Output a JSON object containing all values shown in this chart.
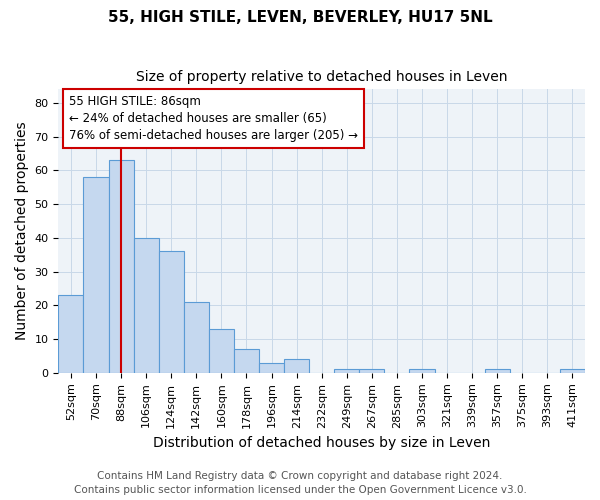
{
  "title": "55, HIGH STILE, LEVEN, BEVERLEY, HU17 5NL",
  "subtitle": "Size of property relative to detached houses in Leven",
  "xlabel": "Distribution of detached houses by size in Leven",
  "ylabel": "Number of detached properties",
  "categories": [
    "52sqm",
    "70sqm",
    "88sqm",
    "106sqm",
    "124sqm",
    "142sqm",
    "160sqm",
    "178sqm",
    "196sqm",
    "214sqm",
    "232sqm",
    "249sqm",
    "267sqm",
    "285sqm",
    "303sqm",
    "321sqm",
    "339sqm",
    "357sqm",
    "375sqm",
    "393sqm",
    "411sqm"
  ],
  "values": [
    23,
    58,
    63,
    40,
    36,
    21,
    13,
    7,
    3,
    4,
    0,
    1,
    1,
    0,
    1,
    0,
    0,
    1,
    0,
    0,
    1
  ],
  "bar_color": "#c5d8ef",
  "bar_edge_color": "#5b9bd5",
  "bar_linewidth": 0.8,
  "vline_x_index": 2,
  "vline_color": "#cc0000",
  "ylim": [
    0,
    84
  ],
  "yticks": [
    0,
    10,
    20,
    30,
    40,
    50,
    60,
    70,
    80
  ],
  "annotation_line1": "55 HIGH STILE: 86sqm",
  "annotation_line2": "← 24% of detached houses are smaller (65)",
  "annotation_line3": "76% of semi-detached houses are larger (205) →",
  "annotation_box_color": "#ffffff",
  "annotation_box_edge_color": "#cc0000",
  "footer_line1": "Contains HM Land Registry data © Crown copyright and database right 2024.",
  "footer_line2": "Contains public sector information licensed under the Open Government Licence v3.0.",
  "bg_color": "#ffffff",
  "plot_bg_color": "#eef3f8",
  "grid_color": "#c8d8e8",
  "title_fontsize": 11,
  "subtitle_fontsize": 10,
  "axis_label_fontsize": 10,
  "tick_fontsize": 8,
  "annotation_fontsize": 8.5,
  "footer_fontsize": 7.5
}
